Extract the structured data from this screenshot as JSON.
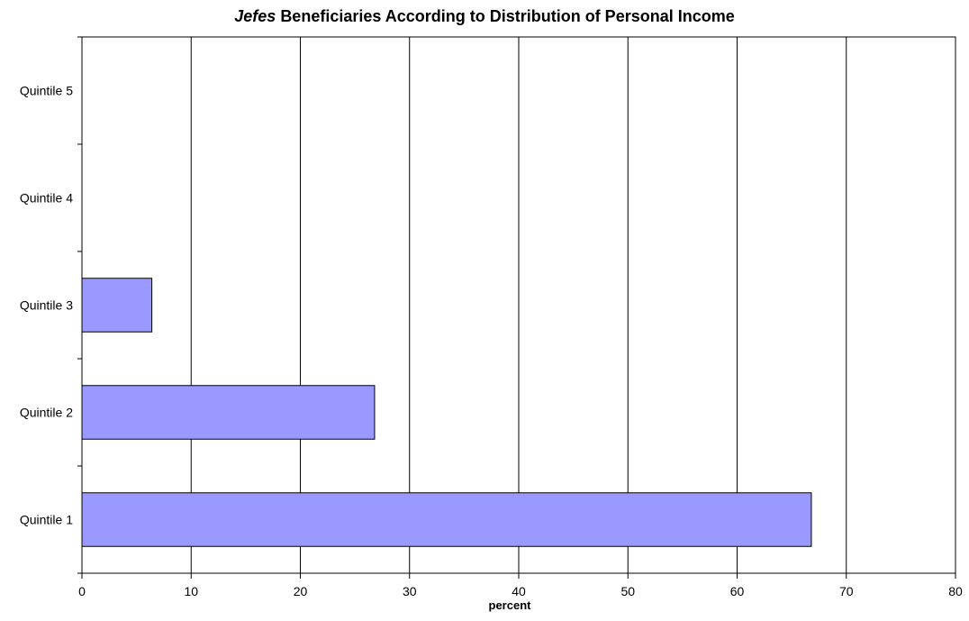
{
  "chart_data": {
    "type": "bar",
    "orientation": "horizontal",
    "title_emphasis": "Jefes",
    "title_rest": "Beneficiaries According to Distribution of Personal Income",
    "xlabel": "percent",
    "ylabel": "",
    "categories": [
      "Quintile 1",
      "Quintile 2",
      "Quintile 3",
      "Quintile 4",
      "Quintile 5"
    ],
    "values": [
      66.8,
      26.8,
      6.4,
      0,
      0
    ],
    "xlim": [
      0,
      80
    ],
    "xticks": [
      "0",
      "10",
      "20",
      "30",
      "40",
      "50",
      "60",
      "70",
      "80"
    ],
    "grid": "vertical",
    "legend": "none",
    "bar_color": "#9999ff",
    "bar_edge_color": "#000000"
  }
}
